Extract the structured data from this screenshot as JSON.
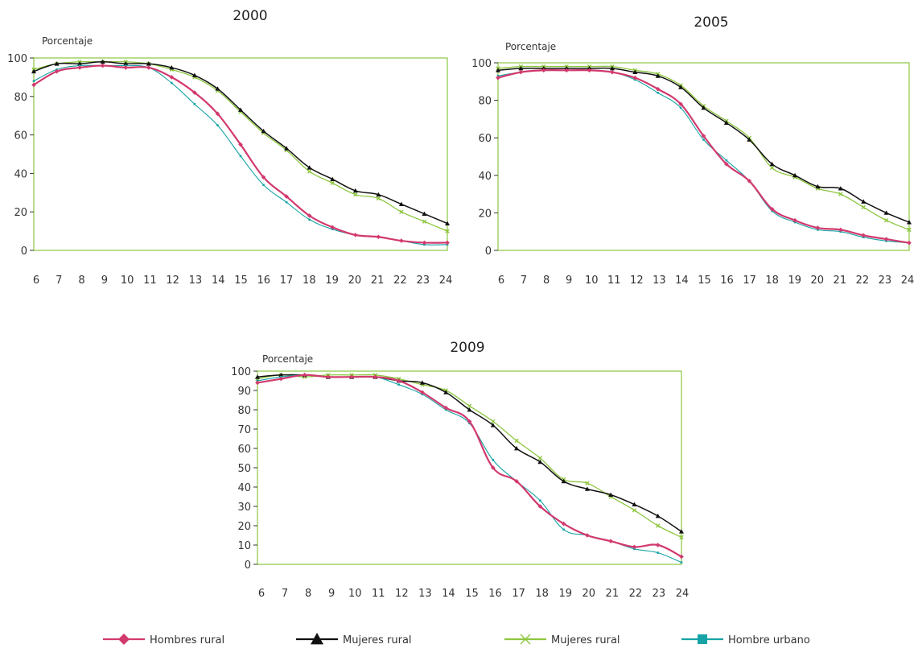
{
  "chart_data": [
    {
      "type": "line",
      "title": "2000",
      "ylabel": "Porcentaje",
      "xlabel": "",
      "ylim": [
        0,
        100
      ],
      "yticks": [
        0,
        20,
        40,
        60,
        80,
        100
      ],
      "x": [
        6,
        7,
        8,
        9,
        10,
        11,
        12,
        13,
        14,
        15,
        16,
        17,
        18,
        19,
        20,
        21,
        22,
        23,
        24
      ],
      "series": [
        {
          "name": "Hombres rural",
          "values": [
            86,
            93,
            95,
            96,
            95,
            95,
            90,
            82,
            71,
            55,
            38,
            28,
            18,
            12,
            8,
            7,
            5,
            4,
            4
          ]
        },
        {
          "name": "Mujeres rural",
          "values": [
            93,
            97,
            97,
            98,
            97,
            97,
            95,
            91,
            84,
            73,
            62,
            53,
            43,
            37,
            31,
            29,
            24,
            19,
            14
          ]
        },
        {
          "name": "Mujeres rural",
          "values": [
            94,
            97,
            98,
            98,
            98,
            97,
            94,
            90,
            83,
            72,
            61,
            52,
            41,
            35,
            29,
            27,
            20,
            15,
            10
          ]
        },
        {
          "name": "Hombre urbano",
          "values": [
            88,
            94,
            96,
            96,
            96,
            95,
            87,
            76,
            65,
            49,
            34,
            25,
            16,
            11,
            8,
            7,
            5,
            3,
            3
          ]
        }
      ]
    },
    {
      "type": "line",
      "title": "2005",
      "ylabel": "Porcentaje",
      "xlabel": "",
      "ylim": [
        0,
        100
      ],
      "yticks": [
        0,
        20,
        40,
        60,
        80,
        100
      ],
      "x": [
        6,
        7,
        8,
        9,
        10,
        11,
        12,
        13,
        14,
        15,
        16,
        17,
        18,
        19,
        20,
        21,
        22,
        23,
        24
      ],
      "series": [
        {
          "name": "Hombres rural",
          "values": [
            92,
            95,
            96,
            96,
            96,
            95,
            92,
            86,
            78,
            61,
            46,
            37,
            22,
            16,
            12,
            11,
            8,
            6,
            4
          ]
        },
        {
          "name": "Mujeres rural",
          "values": [
            96,
            97,
            97,
            97,
            97,
            97,
            95,
            93,
            87,
            76,
            68,
            59,
            46,
            40,
            34,
            33,
            26,
            20,
            15
          ]
        },
        {
          "name": "Mujeres rural",
          "values": [
            97,
            98,
            98,
            98,
            98,
            98,
            96,
            94,
            88,
            77,
            69,
            60,
            44,
            39,
            33,
            30,
            23,
            16,
            11
          ]
        },
        {
          "name": "Hombre urbano",
          "values": [
            93,
            95,
            96,
            96,
            96,
            95,
            91,
            84,
            76,
            59,
            48,
            37,
            21,
            15,
            11,
            10,
            7,
            5,
            4
          ]
        }
      ]
    },
    {
      "type": "line",
      "title": "2009",
      "ylabel": "Porcentaje",
      "xlabel": "",
      "ylim": [
        0,
        100
      ],
      "yticks": [
        0,
        10,
        20,
        30,
        40,
        50,
        60,
        70,
        80,
        90,
        100
      ],
      "x": [
        6,
        7,
        8,
        9,
        10,
        11,
        12,
        13,
        14,
        15,
        16,
        17,
        18,
        19,
        20,
        21,
        22,
        23,
        24
      ],
      "series": [
        {
          "name": "Hombres rural",
          "values": [
            94,
            96,
            98,
            97,
            97,
            97,
            95,
            89,
            81,
            74,
            50,
            43,
            30,
            21,
            15,
            12,
            9,
            10,
            4
          ]
        },
        {
          "name": "Mujeres rural",
          "values": [
            97,
            98,
            98,
            97,
            97,
            97,
            95,
            94,
            89,
            80,
            72,
            60,
            53,
            43,
            39,
            36,
            31,
            25,
            17
          ]
        },
        {
          "name": "Mujeres rural",
          "values": [
            96,
            98,
            97,
            98,
            98,
            98,
            96,
            93,
            90,
            82,
            74,
            64,
            55,
            44,
            42,
            35,
            28,
            20,
            14
          ]
        },
        {
          "name": "Hombre urbano",
          "values": [
            95,
            97,
            98,
            97,
            97,
            97,
            93,
            88,
            80,
            73,
            54,
            43,
            33,
            18,
            15,
            12,
            8,
            6,
            1
          ]
        }
      ]
    }
  ],
  "legend": [
    {
      "label": "Hombres rural",
      "color": "#d2396e",
      "marker": "diamond"
    },
    {
      "label": "Mujeres rural",
      "color": "#111111",
      "marker": "triangle"
    },
    {
      "label": "Mujeres rural",
      "color": "#8dc63f",
      "marker": "x"
    },
    {
      "label": "Hombre urbano",
      "color": "#16a3a6",
      "marker": "square"
    }
  ]
}
